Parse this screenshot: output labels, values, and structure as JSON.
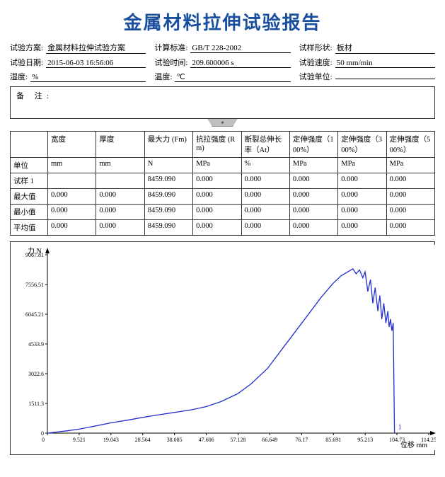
{
  "title": "金属材料拉伸试验报告",
  "meta": {
    "scheme_label": "试验方案:",
    "scheme_value": "金属材料拉伸试验方案",
    "standard_label": "计算标准:",
    "standard_value": "GB/T 228-2002",
    "shape_label": "试样形状:",
    "shape_value": "板材",
    "date_label": "试验日期:",
    "date_value": "2015-06-03 16:56:06",
    "time_label": "试验时间:",
    "time_value": "209.600006 s",
    "speed_label": "试验速度:",
    "speed_value": "50 mm/min",
    "humidity_label": "湿度:",
    "humidity_value": "%",
    "temp_label": "温度:",
    "temp_value": "℃",
    "unit_label": "试验单位:",
    "unit_value": ""
  },
  "remark_label": "备 注:",
  "table": {
    "headers": [
      "",
      "宽度",
      "厚度",
      "最大力 (Fm)",
      "抗拉强度 (Rm)",
      "断裂总伸长率（At）",
      "定伸强度（100%）",
      "定伸强度（300%）",
      "定伸强度（500%）"
    ],
    "units_row_label": "单位",
    "units": [
      "mm",
      "mm",
      "N",
      "MPa",
      "%",
      "MPa",
      "MPa",
      "MPa"
    ],
    "rows": [
      {
        "label": "试样 1",
        "cells": [
          "",
          "",
          "8459.090",
          "0.000",
          "0.000",
          "0.000",
          "0.000",
          "0.000"
        ]
      },
      {
        "label": "最大值",
        "cells": [
          "0.000",
          "0.000",
          "8459.090",
          "0.000",
          "0.000",
          "0.000",
          "0.000",
          "0.000"
        ]
      },
      {
        "label": "最小值",
        "cells": [
          "0.000",
          "0.000",
          "8459.090",
          "0.000",
          "0.000",
          "0.000",
          "0.000",
          "0.000"
        ]
      },
      {
        "label": "平均值",
        "cells": [
          "0.000",
          "0.000",
          "8459.090",
          "0.000",
          "0.000",
          "0.000",
          "0.000",
          "0.000"
        ]
      }
    ]
  },
  "chart": {
    "type": "line",
    "y_axis_label": "力 N",
    "x_axis_label": "位移 mm",
    "y_ticks": [
      0,
      1511.3,
      3022.6,
      4533.9,
      6045.21,
      7556.51,
      9067.81
    ],
    "x_ticks": [
      0,
      9.521,
      19.043,
      28.564,
      38.085,
      47.606,
      57.128,
      66.649,
      76.17,
      85.691,
      95.213,
      104.73,
      114.25
    ],
    "xlim": [
      0,
      114.25
    ],
    "ylim": [
      0,
      9067.81
    ],
    "background_color": "#ffffff",
    "line_color": "#2030d0",
    "axis_color": "#000000",
    "tick_fontsize": 8,
    "label_fontsize": 10,
    "line_width": 1.3,
    "series_label": "1",
    "series": [
      [
        0,
        0
      ],
      [
        3,
        60
      ],
      [
        6,
        120
      ],
      [
        9.5,
        200
      ],
      [
        14,
        350
      ],
      [
        19,
        520
      ],
      [
        24,
        660
      ],
      [
        28.5,
        800
      ],
      [
        33,
        920
      ],
      [
        38,
        1050
      ],
      [
        43,
        1180
      ],
      [
        47.6,
        1350
      ],
      [
        52,
        1600
      ],
      [
        57,
        2000
      ],
      [
        61,
        2500
      ],
      [
        66,
        3300
      ],
      [
        70,
        4200
      ],
      [
        74,
        5100
      ],
      [
        78,
        6000
      ],
      [
        82,
        6900
      ],
      [
        85.5,
        7600
      ],
      [
        88,
        8000
      ],
      [
        90,
        8200
      ],
      [
        91.5,
        8350
      ],
      [
        92.5,
        8100
      ],
      [
        93.5,
        8300
      ],
      [
        94.5,
        7900
      ],
      [
        95.2,
        8200
      ],
      [
        96,
        7200
      ],
      [
        96.8,
        7800
      ],
      [
        97.5,
        6600
      ],
      [
        98.2,
        7400
      ],
      [
        99,
        6200
      ],
      [
        99.6,
        7000
      ],
      [
        100.2,
        5800
      ],
      [
        100.8,
        6600
      ],
      [
        101.4,
        5600
      ],
      [
        102,
        6200
      ],
      [
        102.4,
        5400
      ],
      [
        102.8,
        5800
      ],
      [
        103.2,
        5200
      ],
      [
        103.6,
        5600
      ],
      [
        104,
        20
      ],
      [
        104.2,
        10
      ]
    ]
  }
}
